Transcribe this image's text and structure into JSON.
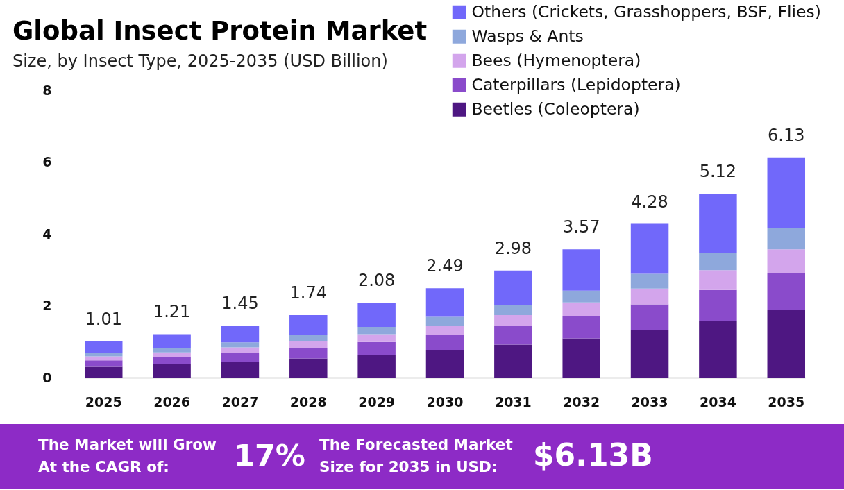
{
  "chart_data": {
    "type": "bar",
    "title": "Global Insect Protein Market",
    "subtitle": "Size, by Insect Type, 2025-2035 (USD Billion)",
    "categories": [
      "2025",
      "2026",
      "2027",
      "2028",
      "2029",
      "2030",
      "2031",
      "2032",
      "2033",
      "2034",
      "2035"
    ],
    "stacked": true,
    "series": [
      {
        "name": "Beetles (Coleoptera)",
        "color": "#4e1782",
        "values": [
          0.3,
          0.37,
          0.43,
          0.53,
          0.64,
          0.76,
          0.92,
          1.09,
          1.32,
          1.57,
          1.88
        ]
      },
      {
        "name": "Caterpillars (Lepidoptera)",
        "color": "#8a4bcb",
        "values": [
          0.18,
          0.2,
          0.25,
          0.29,
          0.35,
          0.43,
          0.51,
          0.62,
          0.72,
          0.87,
          1.04
        ]
      },
      {
        "name": "Bees (Hymenoptera)",
        "color": "#d3a5ec",
        "values": [
          0.11,
          0.13,
          0.16,
          0.19,
          0.22,
          0.25,
          0.31,
          0.38,
          0.44,
          0.55,
          0.65
        ]
      },
      {
        "name": "Wasps & Ants",
        "color": "#8ea8dc",
        "values": [
          0.1,
          0.12,
          0.14,
          0.17,
          0.2,
          0.25,
          0.29,
          0.33,
          0.41,
          0.49,
          0.59
        ]
      },
      {
        "name": "Others (Crickets, Grasshoppers, BSF, Flies)",
        "color": "#7168fa",
        "values": [
          0.32,
          0.39,
          0.47,
          0.56,
          0.67,
          0.8,
          0.95,
          1.15,
          1.39,
          1.64,
          1.97
        ]
      }
    ],
    "totals": [
      "1.01",
      "1.21",
      "1.45",
      "1.74",
      "2.08",
      "2.49",
      "2.98",
      "3.57",
      "4.28",
      "5.12",
      "6.13"
    ],
    "ylim": [
      0,
      8
    ],
    "yticks": [
      0,
      2,
      4,
      6,
      8
    ],
    "legend": "top right",
    "annotations": [
      "The Market will Grow\nAt the CAGR of:",
      "17%",
      "The Forecasted Market\nSize for 2035 in USD:",
      "$6.13B"
    ]
  }
}
